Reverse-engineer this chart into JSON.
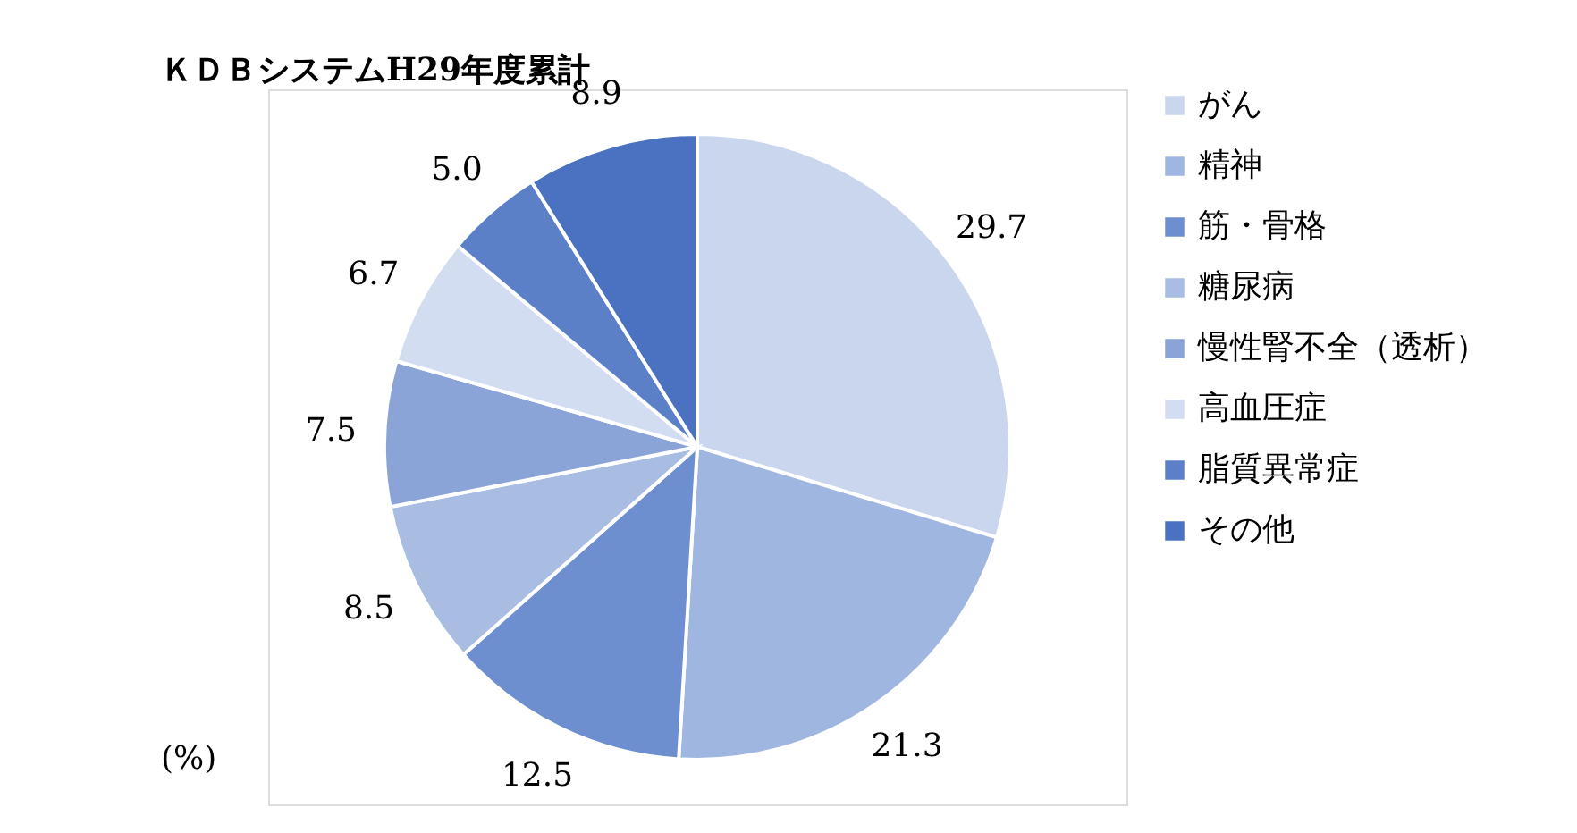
{
  "chart_data": {
    "type": "pie",
    "title": "ＫＤＢシステムH29年度累計",
    "categories": [
      "がん",
      "精神",
      "筋・骨格",
      "糖尿病",
      "慢性腎不全（透析）",
      "高血圧症",
      "脂質異常症",
      "その他"
    ],
    "values": [
      29.7,
      21.3,
      12.5,
      8.5,
      7.5,
      6.7,
      5.0,
      8.9
    ],
    "value_labels": [
      "29.7",
      "21.3",
      "12.5",
      "8.5",
      "7.5",
      "6.7",
      "5.0",
      "8.9"
    ],
    "colors": [
      "#c9d6ee",
      "#9fb6e0",
      "#6e8fcf",
      "#a9bde3",
      "#8aa4d8",
      "#d3ddf1",
      "#5b80c8",
      "#4a72c0"
    ],
    "legend": "right",
    "annotations": [
      "(%)"
    ]
  }
}
